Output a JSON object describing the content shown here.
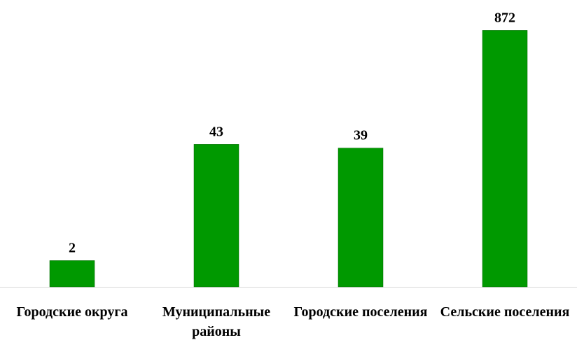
{
  "chart_data": {
    "type": "bar",
    "categories": [
      "Городские округа",
      "Муниципальные районы",
      "Городские поселения",
      "Сельские поселения"
    ],
    "values": [
      2,
      43,
      39,
      872
    ],
    "color": "#009900",
    "log_scale": true,
    "ylim": [
      1,
      1000
    ]
  }
}
